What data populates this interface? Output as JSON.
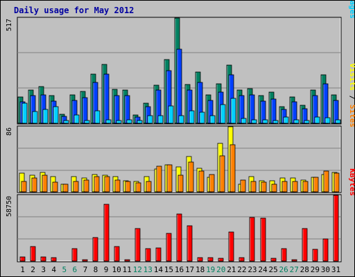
{
  "chart_data": {
    "type": "bar",
    "title": "Daily usage for May 2012",
    "x": [
      "1",
      "2",
      "3",
      "4",
      "5",
      "6",
      "7",
      "8",
      "9",
      "10",
      "11",
      "12",
      "13",
      "14",
      "15",
      "16",
      "17",
      "18",
      "19",
      "20",
      "21",
      "22",
      "23",
      "24",
      "25",
      "26",
      "27",
      "28",
      "29",
      "30",
      "31"
    ],
    "weekend_days": [
      "5",
      "6",
      "12",
      "13",
      "19",
      "20",
      "26",
      "27"
    ],
    "panels": [
      {
        "id": "pages-files-hits",
        "max_label": "517",
        "ylim": [
          0,
          517
        ],
        "legend": [
          {
            "label": "Pages",
            "color": "#00d0ff"
          },
          {
            "label": " / ",
            "color": "#000000"
          },
          {
            "label": "Files",
            "color": "#0040ff"
          },
          {
            "label": " / ",
            "color": "#000000"
          },
          {
            "label": "Hits",
            "color": "#008060"
          }
        ],
        "series": [
          {
            "name": "Hits",
            "color": "#008060",
            "values": [
              129,
              162,
              181,
              135,
              43,
              141,
              157,
              243,
              290,
              165,
              162,
              40,
              99,
              186,
              312,
              517,
              189,
              250,
              141,
              194,
              286,
              162,
              171,
              135,
              152,
              83,
              129,
              88,
              162,
              237,
              141
            ]
          },
          {
            "name": "Files",
            "color": "#0040ff",
            "values": [
              107,
              135,
              140,
              108,
              33,
              113,
              125,
              202,
              242,
              135,
              135,
              30,
              80,
              162,
              260,
              364,
              162,
              199,
              113,
              154,
              237,
              135,
              140,
              109,
              120,
              68,
              107,
              72,
              135,
              194,
              112
            ]
          },
          {
            "name": "Pages",
            "color": "#00d0ff",
            "values": [
              97,
              58,
              67,
              80,
              15,
              40,
              12,
              61,
              17,
              12,
              18,
              12,
              37,
              37,
              84,
              36,
              62,
              56,
              39,
              91,
              122,
              24,
              17,
              16,
              12,
              30,
              17,
              15,
              30,
              28,
              18
            ]
          }
        ]
      },
      {
        "id": "sites-visits",
        "max_label": "86",
        "ylim": [
          0,
          86
        ],
        "legend": [
          {
            "label": "Sites",
            "color": "#ff8000"
          },
          {
            "label": " / ",
            "color": "#000000"
          },
          {
            "label": "Visits",
            "color": "#ffff00"
          }
        ],
        "series": [
          {
            "name": "Visits",
            "color": "#ffff00",
            "values": [
              25,
              22,
              26,
              20,
              10,
              20,
              18,
              23,
              22,
              20,
              15,
              14,
              20,
              30,
              36,
              33,
              47,
              31,
              19,
              64,
              86,
              10,
              20,
              15,
              15,
              18,
              18,
              16,
              19,
              23,
              26
            ]
          },
          {
            "name": "Sites",
            "color": "#ff8000",
            "values": [
              14,
              18,
              22,
              13,
              10,
              14,
              16,
              20,
              20,
              16,
              14,
              12,
              14,
              34,
              36,
              22,
              39,
              27,
              23,
              48,
              62,
              16,
              14,
              13,
              10,
              14,
              14,
              14,
              19,
              27,
              25
            ]
          }
        ]
      },
      {
        "id": "kbytes",
        "max_label": "58750",
        "ylim": [
          0,
          58750
        ],
        "legend": [
          {
            "label": "KBytes",
            "color": "#ff0000"
          }
        ],
        "series": [
          {
            "name": "KBytes",
            "color": "#ff0000",
            "values": [
              3800,
              12800,
              3900,
              3100,
              0,
              11300,
              1200,
              21200,
              51000,
              13200,
              1200,
              28800,
              11300,
              12000,
              24600,
              41800,
              31700,
              3100,
              3200,
              2400,
              26200,
              3100,
              39000,
              38200,
              2400,
              11300,
              1500,
              29200,
              10700,
              20000,
              59000
            ]
          }
        ]
      }
    ]
  }
}
